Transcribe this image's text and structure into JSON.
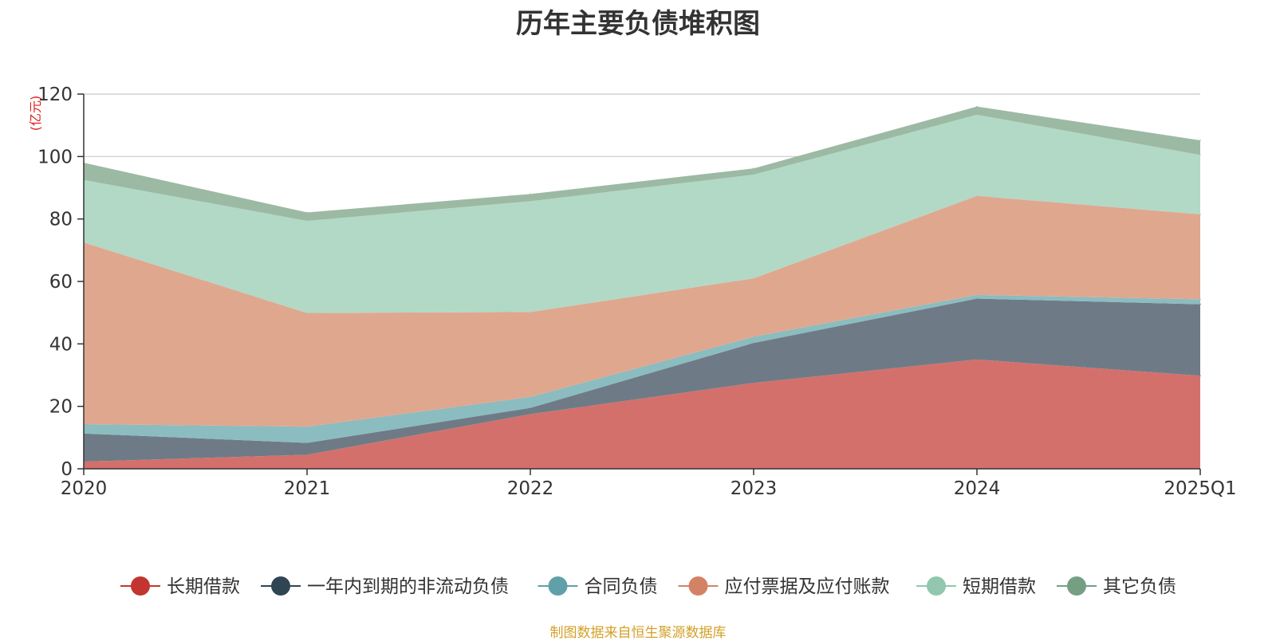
{
  "chart_data": {
    "type": "area",
    "stacked": true,
    "title": "历年主要负债堆积图",
    "unit_label": "(亿元)",
    "source": "制图数据来自恒生聚源数据库",
    "categories": [
      "2020",
      "2021",
      "2022",
      "2023",
      "2024",
      "2025Q1"
    ],
    "ylim": [
      0,
      120
    ],
    "yticks": [
      0,
      20,
      40,
      60,
      80,
      100,
      120
    ],
    "grid": true,
    "legend_position": "bottom",
    "series": [
      {
        "name": "长期借款",
        "color": "#d4706b",
        "legend_color": "#c23531",
        "values": [
          2.3,
          4.5,
          17.5,
          27.5,
          35.0,
          29.8
        ]
      },
      {
        "name": "一年内到期的非流动负债",
        "color": "#6e7b86",
        "legend_color": "#2f4554",
        "values": [
          9.0,
          3.8,
          2.0,
          12.8,
          19.5,
          22.9
        ]
      },
      {
        "name": "合同负债",
        "color": "#8bbcc0",
        "legend_color": "#61a0a8",
        "values": [
          3.0,
          5.2,
          3.5,
          2.0,
          1.2,
          1.6
        ]
      },
      {
        "name": "应付票据及应付账款",
        "color": "#e0a78f",
        "legend_color": "#d48265",
        "values": [
          58.2,
          36.4,
          27.2,
          18.7,
          31.7,
          27.2
        ]
      },
      {
        "name": "短期借款",
        "color": "#b1d9c6",
        "legend_color": "#91c7ae",
        "values": [
          20.0,
          29.5,
          35.5,
          33.2,
          26.0,
          19.0
        ]
      },
      {
        "name": "其它负债",
        "color": "#9cb9a4",
        "legend_color": "#749f83",
        "values": [
          5.5,
          2.7,
          2.3,
          2.0,
          2.6,
          4.7
        ]
      }
    ]
  }
}
